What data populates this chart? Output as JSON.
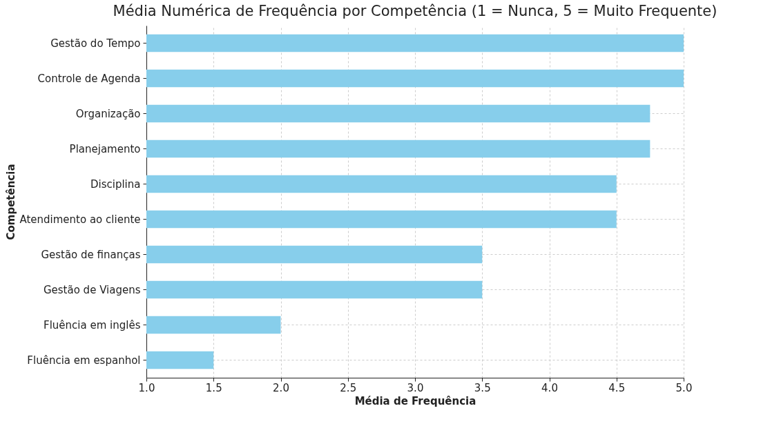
{
  "chart_data": {
    "type": "bar",
    "orientation": "horizontal",
    "title": "Média Numérica de Frequência por Competência (1 = Nunca, 5 = Muito Frequente)",
    "xlabel": "Média de Frequência",
    "ylabel": "Competência",
    "categories": [
      "Gestão do Tempo",
      "Controle de Agenda",
      "Organização",
      "Planejamento",
      "Disciplina",
      "Atendimento ao cliente",
      "Gestão de finanças",
      "Gestão de Viagens",
      "Fluência em inglês",
      "Fluência em espanhol"
    ],
    "values": [
      5,
      5,
      4.75,
      4.75,
      4.5,
      4.5,
      3.5,
      3.5,
      2.0,
      1.5
    ],
    "color": "#87ceeb",
    "xlim": [
      1,
      5
    ],
    "xticks": [
      {
        "value": 1,
        "label": "1.0"
      },
      {
        "value": 1.5,
        "label": "1.5"
      },
      {
        "value": 2,
        "label": "2.0"
      },
      {
        "value": 2.5,
        "label": "2.5"
      },
      {
        "value": 3,
        "label": "3.0"
      },
      {
        "value": 3.5,
        "label": "3.5"
      },
      {
        "value": 4,
        "label": "4.0"
      },
      {
        "value": 4.5,
        "label": "4.5"
      },
      {
        "value": 5,
        "label": "5.0"
      }
    ],
    "grid": true
  }
}
